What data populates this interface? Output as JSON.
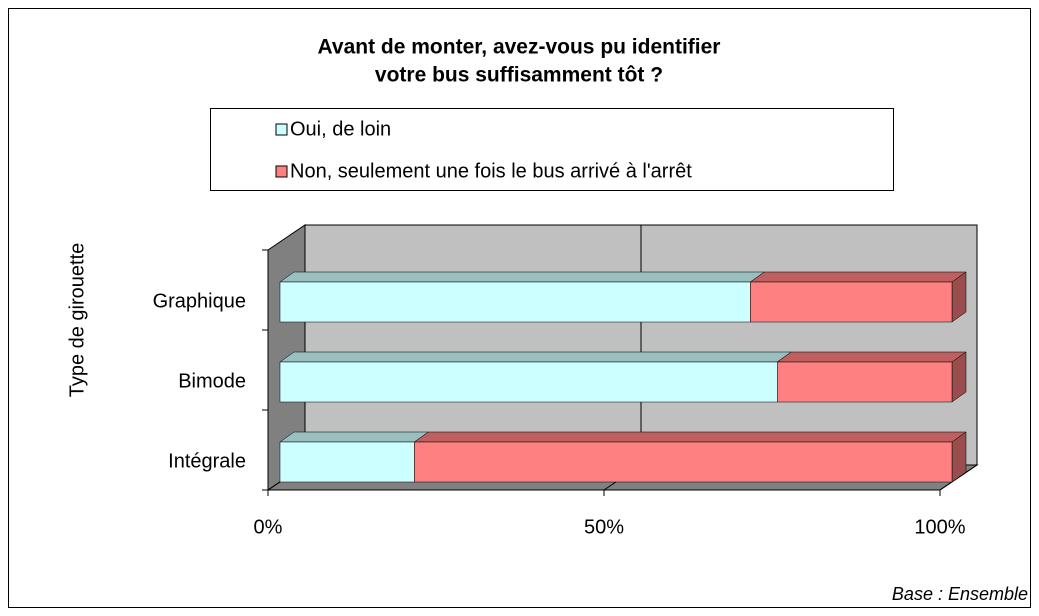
{
  "chart_data": {
    "type": "bar3d_stacked_horizontal",
    "title": [
      "Avant de monter, avez-vous pu identifier",
      "votre bus suffisamment tôt ?"
    ],
    "y_label": "Type de girouette",
    "annotation": "Base : Ensemble",
    "categories": [
      "Graphique",
      "Bimode",
      "Intégrale"
    ],
    "series": [
      {
        "name": "Oui, de loin",
        "color": "#ccffff",
        "values": [
          70,
          74,
          20
        ]
      },
      {
        "name": "Non, seulement une fois le bus arrivé à l'arrêt",
        "color": "#ff8080",
        "values": [
          30,
          26,
          80
        ]
      }
    ],
    "xlim": [
      0,
      100
    ],
    "xticks": [
      {
        "value": 0,
        "label": "0%"
      },
      {
        "value": 50,
        "label": "50%"
      },
      {
        "value": 100,
        "label": "100%"
      }
    ],
    "legend": "top"
  }
}
